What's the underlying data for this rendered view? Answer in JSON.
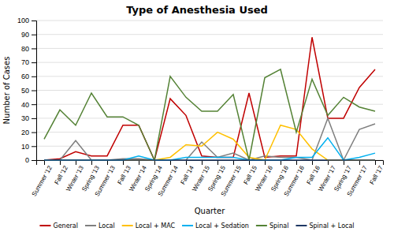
{
  "chart_data": {
    "type": "line",
    "title": "Type of Anesthesia Used",
    "xlabel": "Quarter",
    "ylabel": "Number of Cases",
    "categories": [
      "Summer '12",
      "Fall '12",
      "Winter '13",
      "Spring '13",
      "Summer '13",
      "Fall '13",
      "Winter '14",
      "Spring '14",
      "Summer '14",
      "Fall '14",
      "Winter '15",
      "Spring '15",
      "Summer '15",
      "Fall '15",
      "Winter '16",
      "Spring '16",
      "Summer '16",
      "Fall '16",
      "Winter '17",
      "Spring '17",
      "Summer '17",
      "Fall '17"
    ],
    "series": [
      {
        "name": "General",
        "color": "#c00000",
        "values": [
          0,
          1,
          6,
          3,
          3,
          25,
          25,
          0,
          44,
          32,
          3,
          2,
          2,
          48,
          2,
          3,
          3,
          88,
          30,
          30,
          52,
          65
        ]
      },
      {
        "name": "Local",
        "color": "#7f7f7f",
        "values": [
          0,
          0,
          14,
          0,
          0,
          1,
          1,
          0,
          0,
          0,
          13,
          2,
          5,
          0,
          3,
          2,
          2,
          0,
          30,
          0,
          22,
          26
        ]
      },
      {
        "name": "Local + MAC",
        "color": "#ffc000",
        "values": [
          0,
          0,
          0,
          0,
          0,
          0,
          0,
          0,
          2,
          11,
          10,
          20,
          15,
          2,
          0,
          25,
          22,
          8,
          0,
          0,
          0,
          0
        ]
      },
      {
        "name": "Local + Sedation",
        "color": "#00b0f0",
        "values": [
          0,
          0,
          0,
          0,
          0,
          0,
          3,
          0,
          0,
          2,
          2,
          2,
          2,
          0,
          0,
          0,
          2,
          2,
          16,
          0,
          2,
          5
        ]
      },
      {
        "name": "Spinal",
        "color": "#548235",
        "values": [
          15,
          36,
          25,
          48,
          31,
          31,
          25,
          0,
          60,
          45,
          35,
          35,
          47,
          0,
          59,
          65,
          20,
          58,
          32,
          45,
          38,
          35
        ]
      },
      {
        "name": "Spinal + Local",
        "color": "#1f3864",
        "values": [
          0,
          0,
          0,
          0,
          0,
          0,
          0,
          0,
          0,
          0,
          0,
          0,
          0,
          0,
          0,
          0,
          0,
          0,
          0,
          0,
          0,
          0
        ]
      }
    ],
    "ylim": [
      0,
      100
    ],
    "yticks": [
      0,
      10,
      20,
      30,
      40,
      50,
      60,
      70,
      80,
      90,
      100
    ],
    "grid": true,
    "legend": "bottom"
  }
}
